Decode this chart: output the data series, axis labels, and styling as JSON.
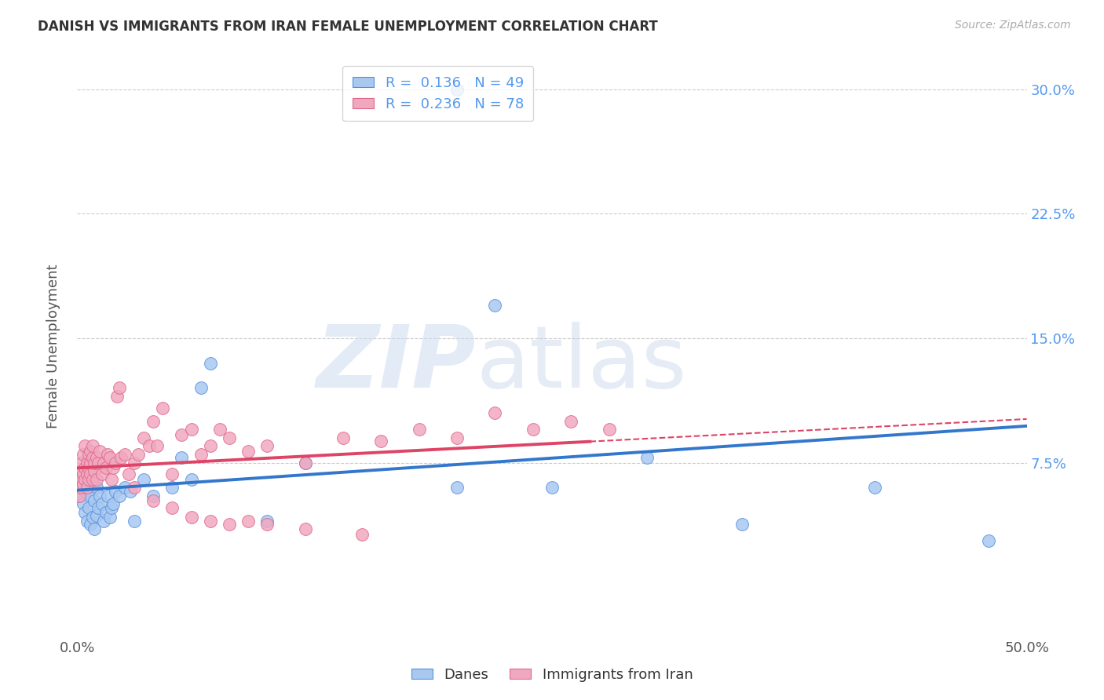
{
  "title": "DANISH VS IMMIGRANTS FROM IRAN FEMALE UNEMPLOYMENT CORRELATION CHART",
  "source": "Source: ZipAtlas.com",
  "ylabel": "Female Unemployment",
  "xlim": [
    0.0,
    0.5
  ],
  "ylim": [
    -0.03,
    0.32
  ],
  "yticks": [
    0.075,
    0.15,
    0.225,
    0.3
  ],
  "ytick_labels": [
    "7.5%",
    "15.0%",
    "22.5%",
    "30.0%"
  ],
  "xticks": [
    0.0,
    0.1,
    0.2,
    0.3,
    0.4,
    0.5
  ],
  "xtick_labels": [
    "0.0%",
    "",
    "",
    "",
    "",
    "50.0%"
  ],
  "legend1_label": "R =  0.136   N = 49",
  "legend2_label": "R =  0.236   N = 78",
  "danes_color": "#a8c8f0",
  "iran_color": "#f0a8c0",
  "danes_edge_color": "#5590dd",
  "iran_edge_color": "#e06888",
  "danes_line_color": "#3377cc",
  "iran_line_color": "#dd4466",
  "danes_x": [
    0.001,
    0.002,
    0.003,
    0.003,
    0.004,
    0.004,
    0.005,
    0.005,
    0.006,
    0.006,
    0.007,
    0.007,
    0.008,
    0.008,
    0.009,
    0.009,
    0.01,
    0.01,
    0.011,
    0.012,
    0.013,
    0.014,
    0.015,
    0.016,
    0.017,
    0.018,
    0.019,
    0.02,
    0.022,
    0.025,
    0.028,
    0.03,
    0.035,
    0.04,
    0.05,
    0.055,
    0.06,
    0.065,
    0.07,
    0.1,
    0.12,
    0.2,
    0.22,
    0.25,
    0.3,
    0.35,
    0.42,
    0.48,
    0.2
  ],
  "danes_y": [
    0.055,
    0.06,
    0.05,
    0.065,
    0.058,
    0.045,
    0.062,
    0.04,
    0.06,
    0.048,
    0.055,
    0.038,
    0.065,
    0.042,
    0.052,
    0.035,
    0.06,
    0.043,
    0.048,
    0.055,
    0.05,
    0.04,
    0.045,
    0.055,
    0.042,
    0.048,
    0.05,
    0.058,
    0.055,
    0.06,
    0.058,
    0.04,
    0.065,
    0.055,
    0.06,
    0.078,
    0.065,
    0.12,
    0.135,
    0.04,
    0.075,
    0.3,
    0.17,
    0.06,
    0.078,
    0.038,
    0.06,
    0.028,
    0.06
  ],
  "iran_x": [
    0.001,
    0.001,
    0.001,
    0.002,
    0.002,
    0.002,
    0.003,
    0.003,
    0.003,
    0.004,
    0.004,
    0.004,
    0.005,
    0.005,
    0.005,
    0.006,
    0.006,
    0.006,
    0.007,
    0.007,
    0.007,
    0.008,
    0.008,
    0.008,
    0.009,
    0.009,
    0.01,
    0.01,
    0.011,
    0.012,
    0.013,
    0.014,
    0.015,
    0.016,
    0.017,
    0.018,
    0.019,
    0.02,
    0.021,
    0.022,
    0.023,
    0.025,
    0.027,
    0.03,
    0.032,
    0.035,
    0.038,
    0.04,
    0.042,
    0.045,
    0.05,
    0.055,
    0.06,
    0.065,
    0.07,
    0.075,
    0.08,
    0.09,
    0.1,
    0.12,
    0.14,
    0.16,
    0.18,
    0.2,
    0.22,
    0.24,
    0.26,
    0.28,
    0.03,
    0.04,
    0.05,
    0.06,
    0.07,
    0.08,
    0.09,
    0.1,
    0.12,
    0.15
  ],
  "iran_y": [
    0.06,
    0.055,
    0.065,
    0.07,
    0.06,
    0.075,
    0.068,
    0.08,
    0.062,
    0.072,
    0.065,
    0.085,
    0.075,
    0.068,
    0.06,
    0.08,
    0.072,
    0.065,
    0.082,
    0.075,
    0.068,
    0.078,
    0.065,
    0.085,
    0.07,
    0.075,
    0.078,
    0.065,
    0.075,
    0.082,
    0.068,
    0.075,
    0.072,
    0.08,
    0.078,
    0.065,
    0.072,
    0.075,
    0.115,
    0.12,
    0.078,
    0.08,
    0.068,
    0.075,
    0.08,
    0.09,
    0.085,
    0.1,
    0.085,
    0.108,
    0.068,
    0.092,
    0.095,
    0.08,
    0.085,
    0.095,
    0.09,
    0.082,
    0.085,
    0.075,
    0.09,
    0.088,
    0.095,
    0.09,
    0.105,
    0.095,
    0.1,
    0.095,
    0.06,
    0.052,
    0.048,
    0.042,
    0.04,
    0.038,
    0.04,
    0.038,
    0.035,
    0.032
  ]
}
